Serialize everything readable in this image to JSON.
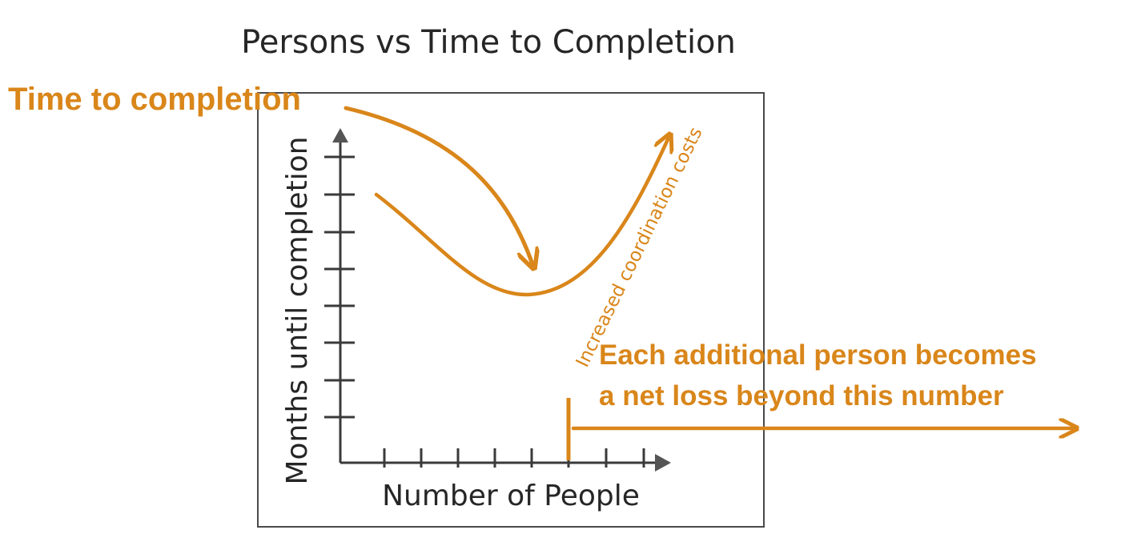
{
  "title": "Persons vs Time to Completion",
  "callouts": {
    "time_to_completion": "Time to completion",
    "net_loss_line1": "Each additional person becomes",
    "net_loss_line2": "a net loss beyond this number"
  },
  "chart": {
    "y_axis_label": "Months until completion",
    "x_axis_label": "Number of People",
    "curve_annotation": "Increased coordination costs"
  },
  "colors": {
    "accent": "#d9861a",
    "ink": "#262626",
    "axis": "#3a3a3a",
    "frame": "#4a4a4a"
  }
}
